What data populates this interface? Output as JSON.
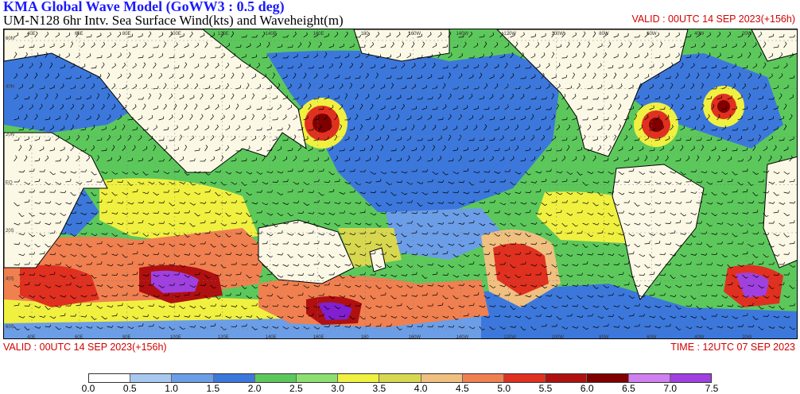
{
  "header": {
    "title": "KMA  Global Wave Model (GoWW3 : 0.5 deg)",
    "subtitle": "UM-N128  6hr Intv. Sea Surface Wind(kts) and Waveheight(m)",
    "valid_top": "VALID : 00UTC 14 SEP 2023(+156h)"
  },
  "footer": {
    "valid": "VALID : 00UTC 14 SEP 2023(+156h)",
    "time": "TIME : 12UTC 07 SEP 2023"
  },
  "map": {
    "lat_labels": [
      "60N",
      "40N",
      "20N",
      "EQ",
      "20S",
      "40S",
      "60S"
    ],
    "lon_labels": [
      "40E",
      "60E",
      "80E",
      "100E",
      "120E",
      "140E",
      "160E",
      "180",
      "160W",
      "140W",
      "120W",
      "100W",
      "80W",
      "60W",
      "40W",
      "20W"
    ],
    "land_color": "#fcf8e6",
    "border_color": "#000000"
  },
  "colorbar": {
    "colors": [
      "#ffffff",
      "#a8c8f0",
      "#6c9ee8",
      "#3c78dc",
      "#5cc85c",
      "#8ce070",
      "#f0f040",
      "#d8d850",
      "#f0c080",
      "#f08050",
      "#e03020",
      "#b01010",
      "#800000",
      "#d080f0",
      "#a040e0",
      "#8020d0"
    ],
    "labels": [
      "0.0",
      "0.5",
      "1.0",
      "1.5",
      "2.0",
      "2.5",
      "3.0",
      "3.5",
      "4.0",
      "4.5",
      "5.0",
      "5.5",
      "6.0",
      "6.5",
      "7.0",
      "7.5"
    ]
  }
}
